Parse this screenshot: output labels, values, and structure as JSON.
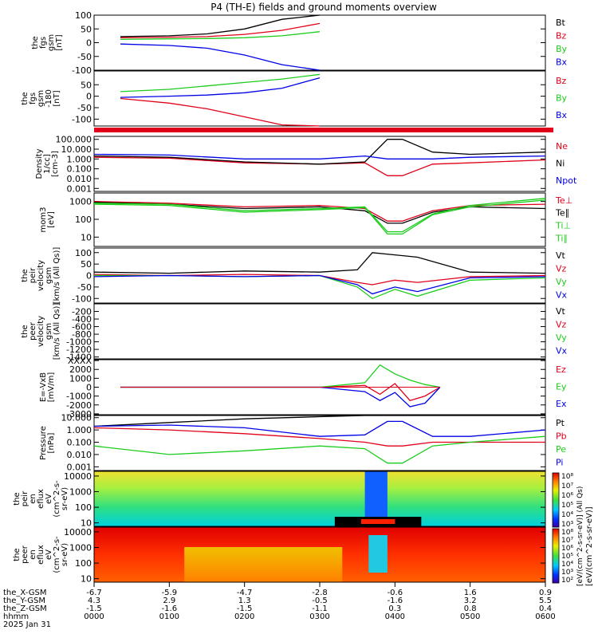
{
  "title": "P4 (TH-E) fields and ground moments overview",
  "colors": {
    "black": "#000000",
    "red": "#e0001a",
    "green": "#1ccd1c",
    "blue": "#0000e6"
  },
  "panels": [
    {
      "id": "fgs_gsm",
      "ylabel": [
        "the",
        "fgs",
        "gsm",
        "[nT]"
      ],
      "ticks": [
        "100",
        "50",
        "0",
        "-50",
        "-100"
      ],
      "tickvals": [
        100,
        50,
        0,
        -50,
        -100
      ],
      "ylim": [
        -100,
        100
      ],
      "legend": [
        {
          "text": "Bt",
          "color": "black"
        },
        {
          "text": "Bz",
          "color": "red"
        },
        {
          "text": "By",
          "color": "green"
        },
        {
          "text": "Bx",
          "color": "blue"
        }
      ]
    },
    {
      "id": "fgs_gsm_clip",
      "ylabel": [
        "the",
        "fgs",
        "gsm",
        "-180",
        "[nT]"
      ],
      "ticks": [
        "50",
        "0",
        "-50",
        "-100"
      ],
      "tickvals": [
        50,
        0,
        -50,
        -100
      ],
      "ylim": [
        -130,
        110
      ],
      "legend": [
        {
          "text": "Bz",
          "color": "red"
        },
        {
          "text": "By",
          "color": "green"
        },
        {
          "text": "Bx",
          "color": "blue"
        }
      ]
    },
    {
      "id": "density",
      "ylabel": [
        "Density",
        "1/cc]",
        "[cm-3]"
      ],
      "ticks": [
        "100.000",
        "10.000",
        "1.000",
        "0.100",
        "0.010",
        "0.001"
      ],
      "tickvals": [
        100,
        10,
        1,
        0.1,
        0.01,
        0.001
      ],
      "ylim": [
        0.0005,
        200
      ],
      "log": true,
      "legend": [
        {
          "text": "Ne",
          "color": "red"
        },
        {
          "text": "Ni",
          "color": "black"
        },
        {
          "text": "Npot",
          "color": "blue"
        }
      ]
    },
    {
      "id": "temp",
      "ylabel": [
        "mom3",
        "[eV]"
      ],
      "ticks": [
        "1000",
        "100",
        "10"
      ],
      "tickvals": [
        1000,
        100,
        10
      ],
      "ylim": [
        3,
        3000
      ],
      "log": true,
      "legend": [
        {
          "text": "Te⊥",
          "color": "red"
        },
        {
          "text": "Te∥",
          "color": "black"
        },
        {
          "text": "Ti⊥",
          "color": "green"
        },
        {
          "text": "Ti∥",
          "color": "green"
        }
      ]
    },
    {
      "id": "vel_peir",
      "ylabel": [
        "the",
        "peir",
        "velocity",
        "gsm",
        "[km/s (All Qs)]"
      ],
      "ticks": [
        "100",
        "50",
        "0",
        "-50",
        "-100"
      ],
      "tickvals": [
        100,
        50,
        0,
        -50,
        -100
      ],
      "ylim": [
        -120,
        120
      ],
      "legend": [
        {
          "text": "Vt",
          "color": "black"
        },
        {
          "text": "Vz",
          "color": "red"
        },
        {
          "text": "Vy",
          "color": "green"
        },
        {
          "text": "Vx",
          "color": "blue"
        }
      ]
    },
    {
      "id": "vel_peer",
      "ylabel": [
        "the",
        "peer",
        "velocity",
        "gsm",
        "[km/s (All Qs)]"
      ],
      "ticks": [
        "-200",
        "-400",
        "-600",
        "-800",
        "-1000",
        "-1200",
        "-1400"
      ],
      "tickvals": [
        -200,
        -400,
        -600,
        -800,
        -1000,
        -1200,
        -1400
      ],
      "ylim": [
        -1450,
        0
      ],
      "legend": [
        {
          "text": "Vt",
          "color": "black"
        },
        {
          "text": "Vz",
          "color": "red"
        },
        {
          "text": "Vy",
          "color": "green"
        },
        {
          "text": "Vx",
          "color": "blue"
        }
      ]
    },
    {
      "id": "efield",
      "ylabel": [
        "E=-VxB",
        "[mV/m]"
      ],
      "ticks": [
        "XXXX",
        "2000",
        "1000",
        "0",
        "-1000",
        "-2000",
        "-3000"
      ],
      "tickvals": [
        3000,
        2000,
        1000,
        0,
        -1000,
        -2000,
        -3000
      ],
      "ylim": [
        -3100,
        3100
      ],
      "legend": [
        {
          "text": "Ez",
          "color": "red"
        },
        {
          "text": "Ey",
          "color": "green"
        },
        {
          "text": "Ex",
          "color": "blue"
        }
      ]
    },
    {
      "id": "pressure",
      "ylabel": [
        "Pressure",
        "[nPa]"
      ],
      "ticks": [
        "10.000",
        "1.000",
        "0.100",
        "0.010",
        "0.001"
      ],
      "tickvals": [
        10,
        1,
        0.1,
        0.01,
        0.001
      ],
      "ylim": [
        0.0005,
        15
      ],
      "log": true,
      "legend": [
        {
          "text": "Pt",
          "color": "black"
        },
        {
          "text": "Pb",
          "color": "red"
        },
        {
          "text": "Pe",
          "color": "green"
        },
        {
          "text": "Pi",
          "color": "blue"
        }
      ]
    },
    {
      "id": "peir_spec",
      "ylabel": [
        "the",
        "peir",
        "en",
        "eflux",
        "eV",
        "(cm^2-s-",
        "sr-eV)"
      ],
      "ticks": [
        "10000",
        "1000",
        "100",
        "10"
      ],
      "tickvals": [
        10000,
        1000,
        100,
        10
      ],
      "ylim": [
        6,
        20000
      ],
      "log": true,
      "spectrogram": true
    },
    {
      "id": "peer_spec",
      "ylabel": [
        "the",
        "peer",
        "en",
        "eflux",
        "eV",
        "(cm^2-s-",
        "sr-eV)"
      ],
      "ticks": [
        "10000",
        "1000",
        "100",
        "10"
      ],
      "tickvals": [
        10000,
        1000,
        100,
        10
      ],
      "ylim": [
        6,
        20000
      ],
      "log": true,
      "spectrogram": true
    }
  ],
  "colorbar": {
    "upper_labels": [
      "10⁸",
      "10⁷",
      "10⁶",
      "10⁵",
      "10⁴",
      "10³"
    ],
    "lower_labels": [
      "10⁸",
      "10⁷",
      "10⁶",
      "10⁵",
      "10⁴",
      "10³",
      "10²"
    ],
    "title": "[eV/(cm^2-s-sr-eV)]",
    "subtitle": "[eV/(cm^2-s-sr-eV)] (All Qs)"
  },
  "x_axis": {
    "row_labels": [
      "the_X-GSM",
      "the_Y-GSM",
      "the_Z-GSM",
      "hhmm",
      "2025 Jan 31"
    ],
    "columns": [
      {
        "x": "-6.7",
        "y": "4.3",
        "z": "-1.5",
        "t": "0000"
      },
      {
        "x": "-5.9",
        "y": "2.9",
        "z": "-1.6",
        "t": "0100"
      },
      {
        "x": "-4.7",
        "y": "1.3",
        "z": "-1.5",
        "t": "0200"
      },
      {
        "x": "-2.8",
        "y": "-0.5",
        "z": "-1.1",
        "t": "0300"
      },
      {
        "x": "-0.6",
        "y": "-1.6",
        "z": "0.3",
        "t": "0400"
      },
      {
        "x": "1.6",
        "y": "3.2",
        "z": "0.8",
        "t": "0500"
      },
      {
        "x": "0.9",
        "y": "5.5",
        "z": "0.4",
        "t": "0600"
      }
    ]
  },
  "chart_data": [
    {
      "type": "line",
      "panel": "fgs_gsm",
      "x_hours": [
        0.35,
        1.0,
        1.5,
        2.0,
        2.5,
        3.0
      ],
      "series": [
        {
          "name": "Bt",
          "values": [
            22,
            25,
            32,
            50,
            85,
            110
          ]
        },
        {
          "name": "Bz",
          "values": [
            18,
            20,
            22,
            30,
            45,
            70
          ]
        },
        {
          "name": "By",
          "values": [
            12,
            14,
            15,
            18,
            25,
            40
          ]
        },
        {
          "name": "Bx",
          "values": [
            -5,
            -10,
            -20,
            -45,
            -80,
            -110
          ]
        }
      ]
    },
    {
      "type": "line",
      "panel": "fgs_gsm_clip",
      "x_hours": [
        0.35,
        1.0,
        1.5,
        2.0,
        2.5,
        3.0
      ],
      "series": [
        {
          "name": "Bz",
          "values": [
            -10,
            -30,
            -55,
            -90,
            -125,
            -140
          ]
        },
        {
          "name": "By",
          "values": [
            20,
            30,
            45,
            60,
            75,
            95
          ]
        },
        {
          "name": "Bx",
          "values": [
            -5,
            0,
            5,
            15,
            35,
            80
          ]
        }
      ]
    },
    {
      "type": "line",
      "panel": "density",
      "x_hours": [
        0.0,
        1.0,
        2.0,
        3.0,
        3.6,
        3.9,
        4.1,
        4.5,
        5.0,
        6.0
      ],
      "series": [
        {
          "name": "Ne",
          "values": [
            1.5,
            1.2,
            0.4,
            0.3,
            0.4,
            0.02,
            0.02,
            0.3,
            0.4,
            0.8
          ]
        },
        {
          "name": "Ni",
          "values": [
            2.0,
            1.5,
            0.5,
            0.3,
            0.5,
            100,
            100,
            5,
            3,
            5
          ]
        },
        {
          "name": "Npot",
          "values": [
            3.0,
            2.5,
            1.0,
            1.0,
            2.0,
            1.0,
            1.0,
            1.0,
            1.5,
            2.0
          ]
        }
      ]
    },
    {
      "type": "line",
      "panel": "temp",
      "x_hours": [
        0.0,
        1.0,
        2.0,
        3.0,
        3.6,
        3.9,
        4.1,
        4.5,
        5.0,
        6.0
      ],
      "series": [
        {
          "name": "Te⊥",
          "values": [
            1000,
            800,
            500,
            600,
            400,
            80,
            80,
            300,
            600,
            700
          ]
        },
        {
          "name": "Te∥",
          "values": [
            900,
            700,
            400,
            500,
            300,
            60,
            60,
            250,
            500,
            400
          ]
        },
        {
          "name": "Ti⊥",
          "values": [
            800,
            700,
            300,
            400,
            500,
            20,
            20,
            200,
            600,
            1500
          ]
        },
        {
          "name": "Ti∥",
          "values": [
            700,
            600,
            250,
            350,
            450,
            15,
            15,
            180,
            500,
            1200
          ]
        }
      ]
    },
    {
      "type": "line",
      "panel": "vel_peir",
      "x_hours": [
        0.0,
        1.0,
        2.0,
        3.0,
        3.5,
        3.7,
        4.0,
        4.3,
        5.0,
        6.0
      ],
      "series": [
        {
          "name": "Vt",
          "values": [
            15,
            10,
            20,
            15,
            25,
            100,
            90,
            80,
            15,
            10
          ]
        },
        {
          "name": "Vz",
          "values": [
            5,
            0,
            5,
            0,
            -30,
            -40,
            -20,
            -30,
            -5,
            0
          ]
        },
        {
          "name": "Vy",
          "values": [
            0,
            0,
            -5,
            0,
            -50,
            -100,
            -60,
            -90,
            -20,
            -10
          ]
        },
        {
          "name": "Vx",
          "values": [
            -5,
            0,
            -5,
            0,
            -40,
            -80,
            -50,
            -70,
            -10,
            -5
          ]
        }
      ]
    },
    {
      "type": "line",
      "panel": "efield",
      "x_hours": [
        0.35,
        3.0,
        3.6,
        3.8,
        4.0,
        4.2,
        4.4,
        4.6
      ],
      "series": [
        {
          "name": "Ez",
          "values": [
            0,
            0,
            200,
            -800,
            400,
            -1500,
            -1000,
            0
          ]
        },
        {
          "name": "Ey",
          "values": [
            0,
            0,
            500,
            2500,
            1500,
            800,
            300,
            0
          ]
        },
        {
          "name": "Ex",
          "values": [
            0,
            0,
            -500,
            -1500,
            -600,
            -2200,
            -1800,
            0
          ]
        }
      ]
    },
    {
      "type": "line",
      "panel": "pressure",
      "x_hours": [
        0.0,
        1.0,
        2.0,
        3.0,
        3.6,
        3.9,
        4.1,
        4.5,
        5.0,
        6.0
      ],
      "series": [
        {
          "name": "Pt",
          "values": [
            2.0,
            4.0,
            8.0,
            12.0,
            15.0,
            15.0,
            15.0,
            15.0,
            15.0,
            15.0
          ]
        },
        {
          "name": "Pb",
          "values": [
            1.5,
            1.0,
            0.5,
            0.2,
            0.1,
            0.05,
            0.05,
            0.1,
            0.1,
            0.1
          ]
        },
        {
          "name": "Pe",
          "values": [
            0.05,
            0.01,
            0.02,
            0.05,
            0.03,
            0.002,
            0.002,
            0.05,
            0.1,
            0.3
          ]
        },
        {
          "name": "Pi",
          "values": [
            2.0,
            2.5,
            1.5,
            0.3,
            0.4,
            5.0,
            5.0,
            0.3,
            0.3,
            1.0
          ]
        }
      ]
    }
  ]
}
